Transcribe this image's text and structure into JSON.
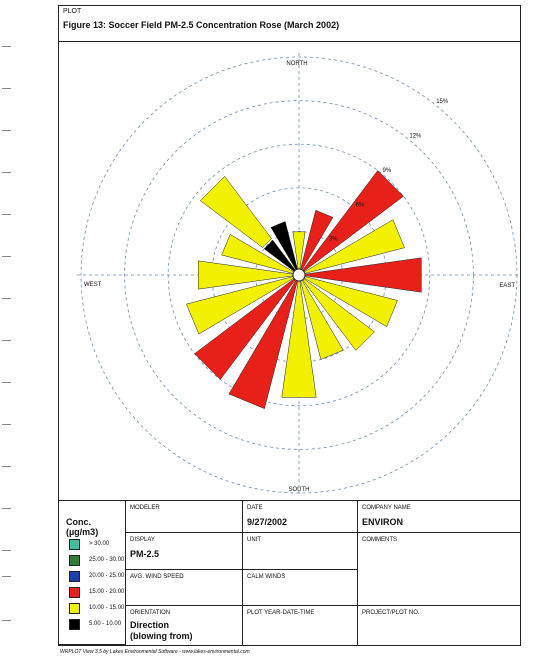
{
  "header": {
    "plot_tag": "PLOT",
    "title": "Figure 13: Soccer Field PM-2.5 Concentration Rose (March 2002)"
  },
  "chart_data": {
    "type": "wind-rose",
    "title": "Figure 13: Soccer Field PM-2.5 Concentration Rose (March 2002)",
    "directions": [
      "N",
      "NNE",
      "NE",
      "ENE",
      "E",
      "ESE",
      "SE",
      "SSE",
      "S",
      "SSW",
      "SW",
      "WSW",
      "W",
      "WNW",
      "NW",
      "NNW"
    ],
    "rings_percent": [
      3,
      6,
      9,
      12,
      15
    ],
    "ring_labels": [
      "3%",
      "6%",
      "9%",
      "12%",
      "15%"
    ],
    "compass_labels": {
      "north": "NORTH",
      "south": "SOUTH",
      "east": "EAST",
      "west": "WEST"
    },
    "colors": {
      ">30": "#3fbfa0",
      "25-30": "#2e7d32",
      "20-25": "#1a3fb0",
      "15-20": "#e8201a",
      "10-15": "#f2f200",
      "5-10": "#000000"
    },
    "bins": [
      "5-10",
      "10-15",
      "15-20"
    ],
    "frequencies": [
      {
        "direction": "N",
        "segments": [
          0,
          3.0,
          0
        ]
      },
      {
        "direction": "NNE",
        "segments": [
          0,
          0,
          4.6
        ]
      },
      {
        "direction": "NE",
        "segments": [
          0,
          0,
          9.0
        ]
      },
      {
        "direction": "ENE",
        "segments": [
          0,
          7.5,
          0
        ]
      },
      {
        "direction": "E",
        "segments": [
          0,
          0,
          8.5
        ]
      },
      {
        "direction": "ESE",
        "segments": [
          0,
          7.0,
          0
        ]
      },
      {
        "direction": "SE",
        "segments": [
          0,
          6.5,
          0
        ]
      },
      {
        "direction": "SSE",
        "segments": [
          0,
          6.0,
          0
        ]
      },
      {
        "direction": "S",
        "segments": [
          0,
          8.5,
          0
        ]
      },
      {
        "direction": "SSW",
        "segments": [
          0,
          0,
          9.5
        ]
      },
      {
        "direction": "SW",
        "segments": [
          0,
          0,
          9.0
        ]
      },
      {
        "direction": "WSW",
        "segments": [
          0,
          8.0,
          0
        ]
      },
      {
        "direction": "W",
        "segments": [
          0,
          7.0,
          0
        ]
      },
      {
        "direction": "WNW",
        "segments": [
          0,
          5.5,
          0
        ]
      },
      {
        "direction": "NW",
        "segments": [
          3.0,
          5.5,
          0
        ]
      },
      {
        "direction": "NNW",
        "segments": [
          3.8,
          0,
          0
        ]
      }
    ],
    "max_percent": 15,
    "grid": true
  },
  "info": {
    "legend_title": "Conc. (µg/m3)",
    "legend": [
      {
        "label": "> 30.00",
        "color": "#3fbfa0"
      },
      {
        "label": "25.00 - 30.00",
        "color": "#2e7d32"
      },
      {
        "label": "20.00 - 25.00",
        "color": "#1a3fb0"
      },
      {
        "label": "15.00 - 20.00",
        "color": "#e8201a"
      },
      {
        "label": "10.00 - 15.00",
        "color": "#f2f200"
      },
      {
        "label": "5.00 - 10.00",
        "color": "#000000"
      }
    ],
    "modeler_label": "MODELER",
    "date_label": "DATE",
    "date_value": "9/27/2002",
    "company_label": "COMPANY NAME",
    "company_value": "ENVIRON",
    "display_label": "DISPLAY",
    "display_value": "PM-2.5",
    "unit_label": "UNIT",
    "comments_label": "COMMENTS",
    "avg_wind_label": "AVG. WIND SPEED",
    "calm_label": "CALM WINDS",
    "orientation_label": "ORIENTATION",
    "orientation_value_1": "Direction",
    "orientation_value_2": "(blowing from)",
    "plot_ydt_label": "PLOT YEAR-DATE-TIME",
    "project_label": "PROJECT/PLOT NO."
  },
  "footer": {
    "text": "WRPLOT View 3.5 by Lakes Environmental Software - www.lakes-environmental.com"
  }
}
